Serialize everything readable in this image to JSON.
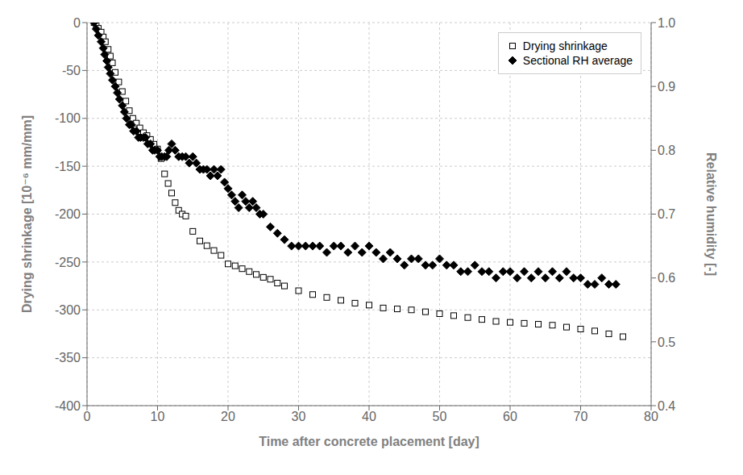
{
  "chart_data": {
    "type": "scatter",
    "xlabel": "Time after concrete placement [day]",
    "ylabel": "Drying shrinkage [10⁻⁶ mm/mm]",
    "y2label": "Relative humidity [-]",
    "xlim": [
      0,
      80
    ],
    "ylim": [
      -400,
      0
    ],
    "y2lim": [
      0.4,
      1.0
    ],
    "xticks": [
      0,
      10,
      20,
      30,
      40,
      50,
      60,
      70,
      80
    ],
    "yticks": [
      0,
      -50,
      -100,
      -150,
      -200,
      -250,
      -300,
      -350,
      -400
    ],
    "y2ticks": [
      0.4,
      0.5,
      0.6,
      0.7,
      0.8,
      0.9,
      {
        "value": 1.0,
        "label": "1.0"
      }
    ],
    "grid": true,
    "legend": "upper right",
    "series": [
      {
        "name": "Drying shrinkage",
        "color": "black",
        "marker": "open-square",
        "x": [
          1,
          1.3,
          1.6,
          2.0,
          2.3,
          2.6,
          3.0,
          3.3,
          3.6,
          4.0,
          4.5,
          5.0,
          5.5,
          6.0,
          6.5,
          7.0,
          7.5,
          8.0,
          8.5,
          9.0,
          9.5,
          10.0,
          10.5,
          11.0,
          11.5,
          12.0,
          12.5,
          13.0,
          13.5,
          14.0,
          15.0,
          16.0,
          17.0,
          18.0,
          19.0,
          20.0,
          21.0,
          22.0,
          23.0,
          24.0,
          25.0,
          26.0,
          27.0,
          28.0,
          30.0,
          32.0,
          34.0,
          36.0,
          38.0,
          40.0,
          42.0,
          44.0,
          46.0,
          48.0,
          50.0,
          52.0,
          54.0,
          56.0,
          58.0,
          60.0,
          62.0,
          64.0,
          66.0,
          68.0,
          70.0,
          72.0,
          74.0,
          76.0
        ],
        "values": [
          0,
          -3,
          -6,
          -10,
          -15,
          -20,
          -28,
          -35,
          -42,
          -52,
          -62,
          -72,
          -82,
          -92,
          -100,
          -105,
          -110,
          -115,
          -118,
          -122,
          -127,
          -132,
          -142,
          -158,
          -168,
          -178,
          -188,
          -196,
          -200,
          -202,
          -218,
          -228,
          -233,
          -238,
          -243,
          -252,
          -254,
          -257,
          -260,
          -263,
          -266,
          -268,
          -272,
          -275,
          -280,
          -284,
          -287,
          -290,
          -293,
          -295,
          -298,
          -299,
          -300,
          -302,
          -304,
          -306,
          -308,
          -310,
          -312,
          -313,
          -314,
          -315,
          -316,
          -318,
          -320,
          -322,
          -325,
          -328
        ]
      },
      {
        "name": "Sectional RH average",
        "color": "black",
        "marker": "diamond",
        "axis": "y2",
        "x": [
          1.0,
          1.3,
          1.6,
          2.0,
          2.3,
          2.5,
          2.8,
          3.0,
          3.3,
          3.6,
          4.0,
          4.3,
          4.6,
          5.0,
          5.3,
          5.6,
          6.0,
          6.3,
          6.6,
          7.0,
          7.3,
          7.6,
          8.0,
          8.3,
          8.6,
          9.0,
          9.3,
          9.6,
          10.0,
          10.3,
          10.6,
          11.0,
          11.3,
          11.6,
          12.0,
          12.5,
          13.0,
          13.5,
          14.0,
          14.5,
          15.0,
          15.5,
          16.0,
          16.5,
          17.0,
          17.5,
          18.0,
          18.5,
          19.0,
          19.5,
          20.0,
          20.5,
          21.0,
          21.5,
          22.0,
          22.5,
          23.0,
          23.5,
          24.0,
          24.5,
          25.0,
          26.0,
          27.0,
          28.0,
          29.0,
          30.0,
          31.0,
          32.0,
          33.0,
          34.0,
          35.0,
          36.0,
          37.0,
          38.0,
          39.0,
          40.0,
          41.0,
          42.0,
          43.0,
          44.0,
          45.0,
          46.0,
          47.0,
          48.0,
          49.0,
          50.0,
          51.0,
          52.0,
          53.0,
          54.0,
          55.0,
          56.0,
          57.0,
          58.0,
          59.0,
          60.0,
          61.0,
          62.0,
          63.0,
          64.0,
          65.0,
          66.0,
          67.0,
          68.0,
          69.0,
          70.0,
          71.0,
          72.0,
          73.0,
          74.0,
          75.0
        ],
        "values": [
          1.0,
          0.99,
          0.98,
          0.97,
          0.96,
          0.95,
          0.94,
          0.93,
          0.92,
          0.91,
          0.9,
          0.89,
          0.88,
          0.87,
          0.86,
          0.85,
          0.84,
          0.84,
          0.83,
          0.83,
          0.82,
          0.82,
          0.82,
          0.82,
          0.81,
          0.81,
          0.8,
          0.8,
          0.8,
          0.79,
          0.79,
          0.79,
          0.79,
          0.8,
          0.81,
          0.8,
          0.79,
          0.79,
          0.79,
          0.78,
          0.79,
          0.78,
          0.77,
          0.77,
          0.77,
          0.76,
          0.77,
          0.76,
          0.77,
          0.75,
          0.74,
          0.73,
          0.72,
          0.71,
          0.73,
          0.72,
          0.71,
          0.72,
          0.71,
          0.7,
          0.7,
          0.68,
          0.67,
          0.66,
          0.65,
          0.65,
          0.65,
          0.65,
          0.65,
          0.64,
          0.65,
          0.65,
          0.64,
          0.65,
          0.64,
          0.65,
          0.64,
          0.63,
          0.64,
          0.63,
          0.62,
          0.63,
          0.63,
          0.62,
          0.62,
          0.63,
          0.62,
          0.62,
          0.61,
          0.61,
          0.62,
          0.61,
          0.61,
          0.6,
          0.61,
          0.61,
          0.6,
          0.61,
          0.6,
          0.61,
          0.6,
          0.61,
          0.6,
          0.61,
          0.6,
          0.6,
          0.59,
          0.59,
          0.6,
          0.59,
          0.59
        ]
      }
    ]
  }
}
